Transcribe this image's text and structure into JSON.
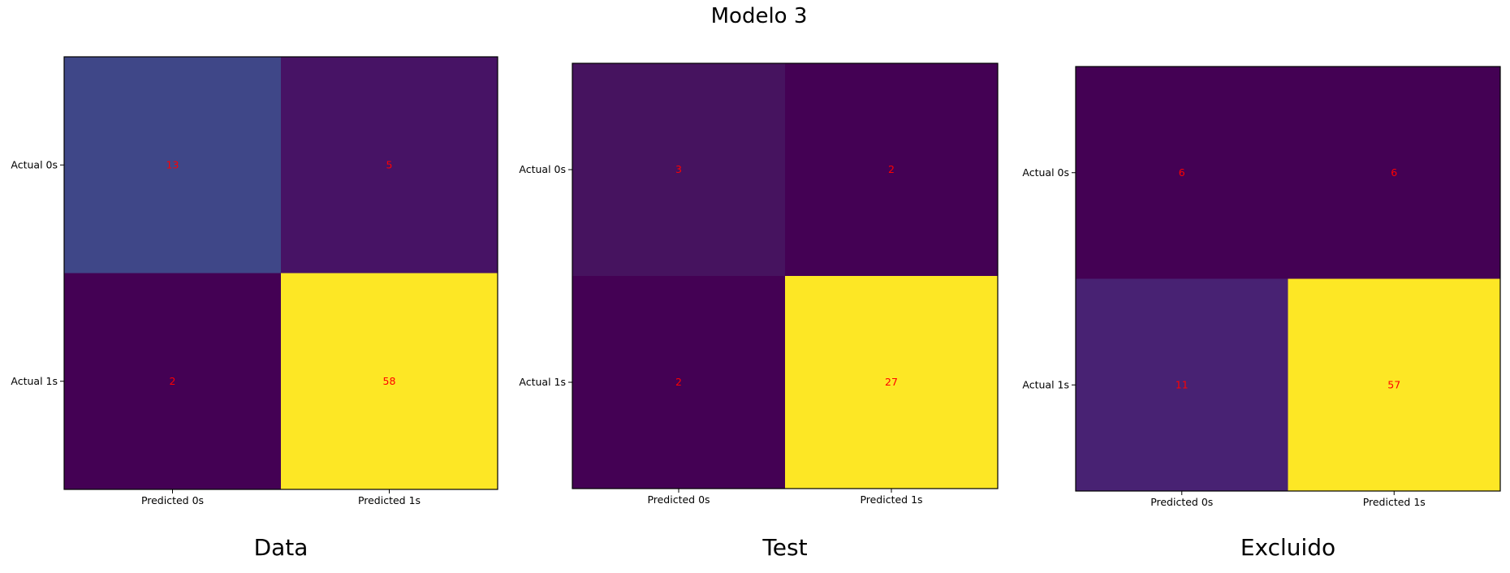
{
  "title": "Modelo 3",
  "colors": {
    "text_value": "#ff0000",
    "frame": "#000000",
    "colormap": "viridis"
  },
  "chart_data": [
    {
      "type": "heatmap",
      "caption": "Data",
      "x_tick_labels": [
        "Predicted 0s",
        "Predicted 1s"
      ],
      "y_tick_labels": [
        "Actual 0s",
        "Actual 1s"
      ],
      "matrix": [
        [
          13,
          5
        ],
        [
          2,
          58
        ]
      ],
      "cell_colors": [
        [
          "#3f4788",
          "#471365"
        ],
        [
          "#440154",
          "#fde725"
        ]
      ]
    },
    {
      "type": "heatmap",
      "caption": "Test",
      "x_tick_labels": [
        "Predicted 0s",
        "Predicted 1s"
      ],
      "y_tick_labels": [
        "Actual 0s",
        "Actual 1s"
      ],
      "matrix": [
        [
          3,
          2
        ],
        [
          2,
          27
        ]
      ],
      "cell_colors": [
        [
          "#46135f",
          "#440154"
        ],
        [
          "#440154",
          "#fde725"
        ]
      ]
    },
    {
      "type": "heatmap",
      "caption": "Excluido",
      "x_tick_labels": [
        "Predicted 0s",
        "Predicted 1s"
      ],
      "y_tick_labels": [
        "Actual 0s",
        "Actual 1s"
      ],
      "matrix": [
        [
          6,
          6
        ],
        [
          11,
          57
        ]
      ],
      "cell_colors": [
        [
          "#440154",
          "#440154"
        ],
        [
          "#482273",
          "#fde725"
        ]
      ]
    }
  ]
}
